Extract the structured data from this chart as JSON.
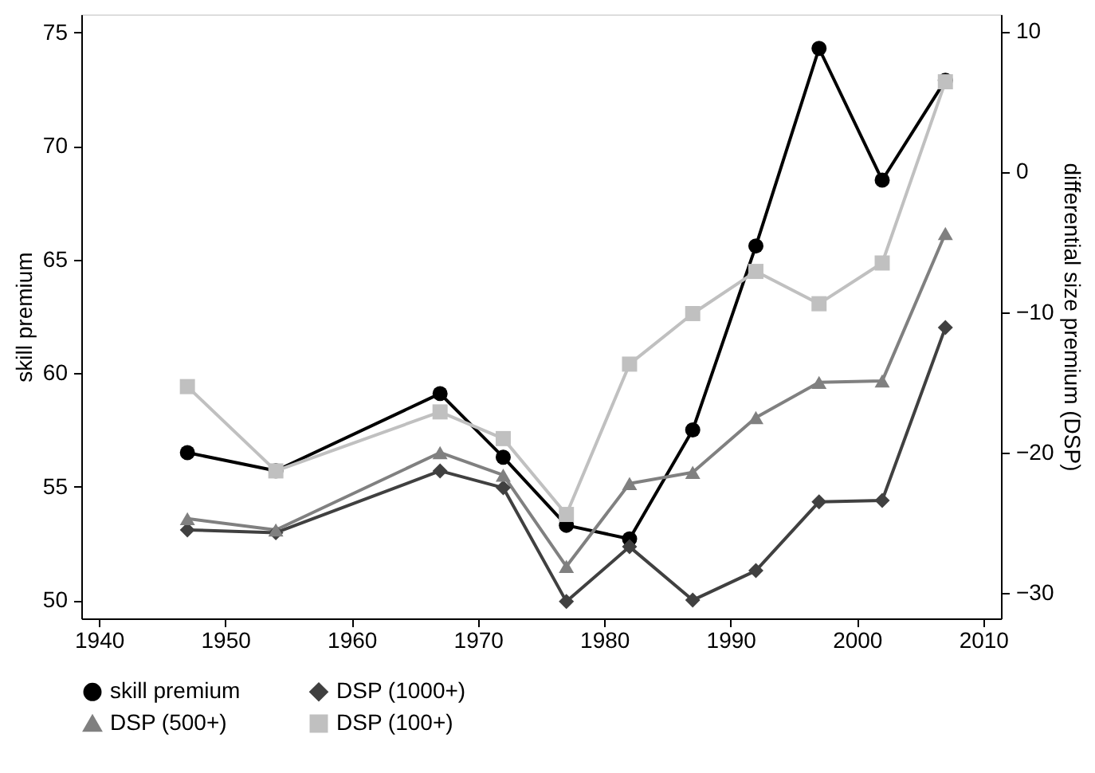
{
  "chart_data": {
    "type": "line",
    "ylabel": "skill premium",
    "y2label": "differential size premium (DSP)",
    "x": [
      1947,
      1954,
      1967,
      1972,
      1977,
      1982,
      1987,
      1992,
      1997,
      2002,
      2007
    ],
    "xlim": [
      1938.6,
      2011.4
    ],
    "xticks": [
      1940,
      1950,
      1960,
      1970,
      1980,
      1990,
      2000,
      2010
    ],
    "ylim": [
      49.2,
      75.8
    ],
    "yticks": [
      50,
      55,
      60,
      65,
      70,
      75
    ],
    "y2lim": [
      -31.8,
      11.2
    ],
    "y2ticks": [
      -30,
      -20,
      -10,
      0,
      10
    ],
    "grid": false,
    "legend": "bottom",
    "line_style": "solid",
    "series": [
      {
        "name": "skill premium",
        "color": "#000000",
        "marker": "circle",
        "values": [
          56.5,
          55.7,
          59.1,
          56.3,
          53.3,
          52.7,
          57.5,
          65.6,
          74.3,
          68.5,
          72.9
        ]
      },
      {
        "name": "DSP (1000+)",
        "color": "#404040",
        "marker": "diamond",
        "axis": "y2",
        "values": [
          -25.5,
          -25.7,
          -21.3,
          -22.5,
          -30.6,
          -26.7,
          -30.5,
          -28.4,
          -23.5,
          -23.4,
          -11.1
        ]
      },
      {
        "name": "DSP (500+)",
        "color": "#808080",
        "marker": "triangle",
        "axis": "y2",
        "values": [
          -24.7,
          -25.5,
          -20.0,
          -21.6,
          -28.1,
          -22.2,
          -21.4,
          -17.5,
          -15.0,
          -14.9,
          -4.4
        ]
      },
      {
        "name": "DSP (100+)",
        "color": "#c0c0c0",
        "marker": "square",
        "axis": "y2",
        "values": [
          -15.3,
          -21.3,
          -17.1,
          -19.0,
          -24.4,
          -13.7,
          -10.1,
          -7.1,
          -9.4,
          -6.5,
          6.4
        ]
      }
    ]
  }
}
